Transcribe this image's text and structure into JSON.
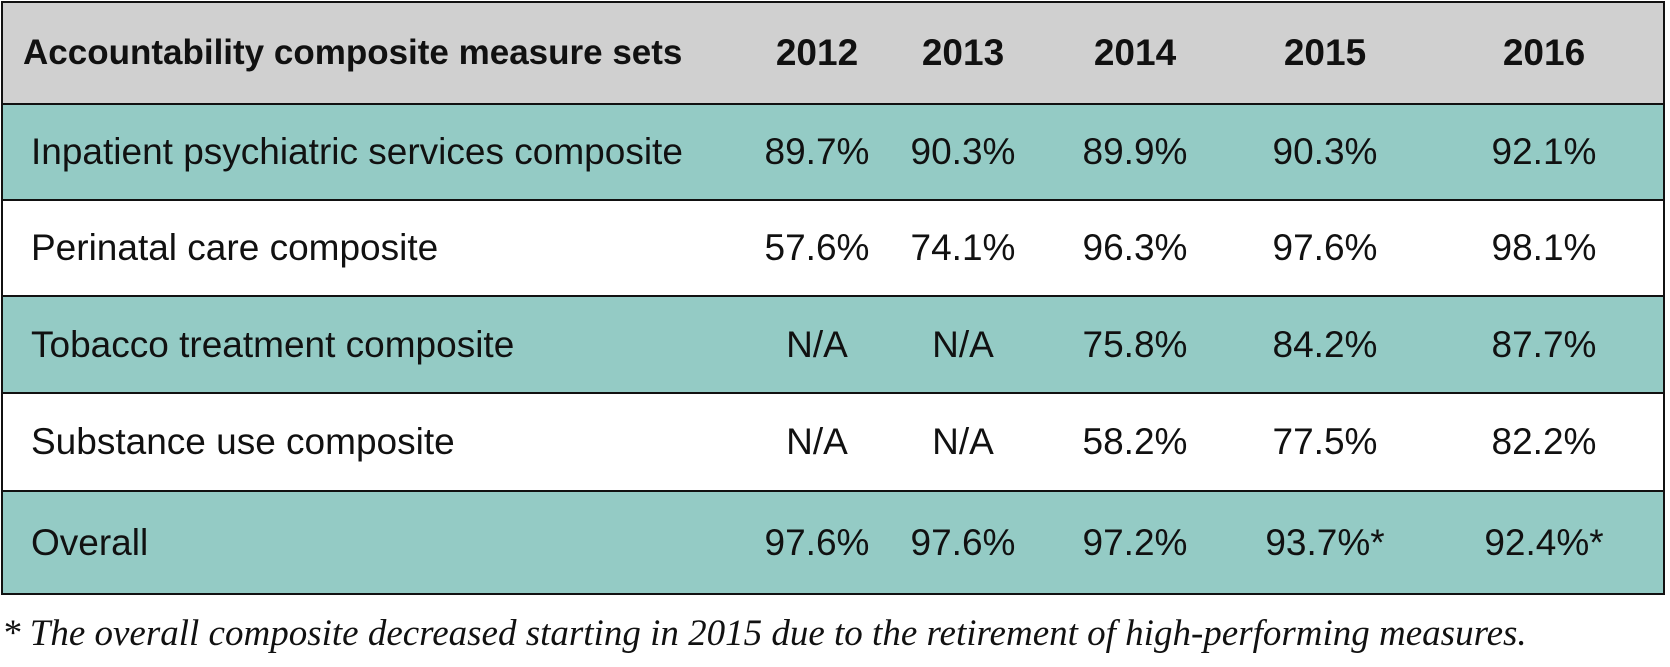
{
  "table": {
    "headers": [
      "Accountability composite measure sets",
      "2012",
      "2013",
      "2014",
      "2015",
      "2016"
    ],
    "rows": [
      [
        "Inpatient psychiatric services composite",
        "89.7%",
        "90.3%",
        "89.9%",
        "90.3%",
        "92.1%"
      ],
      [
        "Perinatal care composite",
        "57.6%",
        "74.1%",
        "96.3%",
        "97.6%",
        "98.1%"
      ],
      [
        "Tobacco treatment composite",
        "N/A",
        "N/A",
        "75.8%",
        "84.2%",
        "87.7%"
      ],
      [
        "Substance use composite",
        "N/A",
        "N/A",
        "58.2%",
        "77.5%",
        "82.2%"
      ],
      [
        "Overall",
        "97.6%",
        "97.6%",
        "97.2%",
        "93.7%*",
        "92.4%*"
      ]
    ]
  },
  "footnote": "* The overall composite decreased starting in 2015 due to the retirement of high-performing measures.",
  "colors": {
    "header_bg": "#d0d0d0",
    "teal_row_bg": "#94cbc5",
    "white_row_bg": "#ffffff",
    "border": "#111111"
  }
}
